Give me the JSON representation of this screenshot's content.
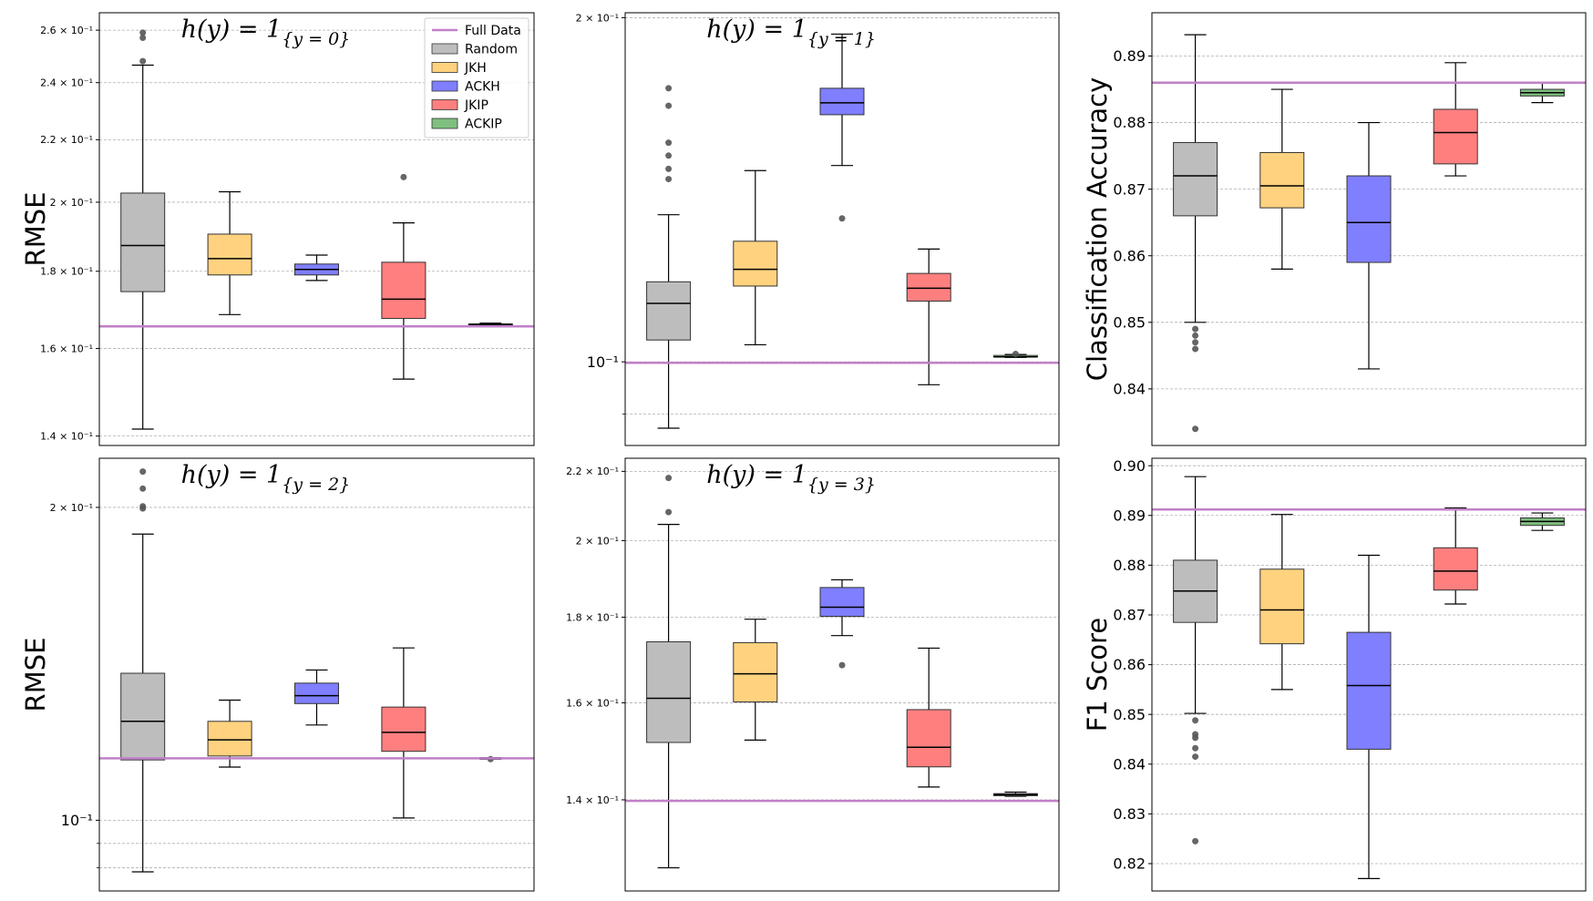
{
  "full_data_color": "#c080c8",
  "series_colors": {
    "Random": "#bdbdbd",
    "JKH": "#ffd27f",
    "ACKH": "#7f7fff",
    "JKIP": "#ff7f7f",
    "ACKIP": "#7fbf7f"
  },
  "legend": {
    "entries": [
      {
        "label": "Full Data",
        "kind": "line",
        "color": "#c080c8"
      },
      {
        "label": "Random",
        "kind": "box",
        "color": "#bdbdbd"
      },
      {
        "label": "JKH",
        "kind": "box",
        "color": "#ffd27f"
      },
      {
        "label": "ACKH",
        "kind": "box",
        "color": "#7f7fff"
      },
      {
        "label": "JKIP",
        "kind": "box",
        "color": "#ff7f7f"
      },
      {
        "label": "ACKIP",
        "kind": "box",
        "color": "#7fbf7f"
      }
    ]
  },
  "chart_data": [
    {
      "id": "p1",
      "type": "box",
      "scale": "log",
      "title": "h(y) = 1",
      "title_sub": "{y = 0}",
      "ylabel": "RMSE",
      "ylim": [
        0.138,
        0.267
      ],
      "yticks": [
        0.14,
        0.16,
        0.18,
        0.2,
        0.22,
        0.24,
        0.26
      ],
      "yticklabels": [
        "1.4 × 10⁻¹",
        "1.6 × 10⁻¹",
        "1.8 × 10⁻¹",
        "2 × 10⁻¹",
        "2.2 × 10⁻¹",
        "2.4 × 10⁻¹",
        "2.6 × 10⁻¹"
      ],
      "tick_size": "small",
      "full_data": 0.1655,
      "boxes": [
        {
          "name": "Random",
          "whislo": 0.1415,
          "q1": 0.1745,
          "med": 0.1872,
          "q3": 0.2028,
          "whishi": 0.2465,
          "fliers": [
            0.259,
            0.257,
            0.248
          ]
        },
        {
          "name": "JKH",
          "whislo": 0.1685,
          "q1": 0.179,
          "med": 0.1835,
          "q3": 0.1905,
          "whishi": 0.2032,
          "fliers": []
        },
        {
          "name": "ACKH",
          "whislo": 0.1775,
          "q1": 0.179,
          "med": 0.1805,
          "q3": 0.182,
          "whishi": 0.1845,
          "fliers": []
        },
        {
          "name": "JKIP",
          "whislo": 0.1527,
          "q1": 0.1675,
          "med": 0.1725,
          "q3": 0.1825,
          "whishi": 0.1938,
          "fliers": [
            0.2078
          ]
        },
        {
          "name": "ACKIP",
          "whislo": 0.1656,
          "q1": 0.1659,
          "med": 0.166,
          "q3": 0.1661,
          "whishi": 0.1663,
          "fliers": []
        }
      ]
    },
    {
      "id": "p2",
      "type": "box",
      "scale": "log",
      "title": "h(y) = 1",
      "title_sub": "{y = 1}",
      "ylabel": "",
      "ylim": [
        0.0845,
        0.202
      ],
      "yticks": [
        0.1,
        0.2
      ],
      "yticklabels": [
        "10⁻¹",
        "2 × 10⁻¹"
      ],
      "tick_size_list": [
        "large",
        "small"
      ],
      "minor_ticks": [
        0.09
      ],
      "full_data": 0.0998,
      "boxes": [
        {
          "name": "Random",
          "whislo": 0.0875,
          "q1": 0.1045,
          "med": 0.1125,
          "q3": 0.1175,
          "whishi": 0.1345,
          "fliers": [
            0.1735,
            0.1675,
            0.1555,
            0.1515,
            0.1475,
            0.1445
          ]
        },
        {
          "name": "JKH",
          "whislo": 0.1035,
          "q1": 0.1165,
          "med": 0.1205,
          "q3": 0.1275,
          "whishi": 0.147,
          "fliers": []
        },
        {
          "name": "ACKH",
          "whislo": 0.1485,
          "q1": 0.1645,
          "med": 0.1685,
          "q3": 0.1735,
          "whishi": 0.1935,
          "fliers": [
            0.1335
          ]
        },
        {
          "name": "JKIP",
          "whislo": 0.0955,
          "q1": 0.113,
          "med": 0.116,
          "q3": 0.1195,
          "whishi": 0.1255,
          "fliers": []
        },
        {
          "name": "ACKIP",
          "whislo": 0.1009,
          "q1": 0.101,
          "med": 0.101,
          "q3": 0.1013,
          "whishi": 0.1015,
          "fliers": [
            0.1016
          ]
        }
      ]
    },
    {
      "id": "p3",
      "type": "box",
      "scale": "linear",
      "title": "",
      "title_sub": "",
      "ylabel": "Classification Accuracy",
      "ylim": [
        0.8315,
        0.8965
      ],
      "yticks": [
        0.84,
        0.85,
        0.86,
        0.87,
        0.88,
        0.89
      ],
      "yticklabels": [
        "0.84",
        "0.85",
        "0.86",
        "0.87",
        "0.88",
        "0.89"
      ],
      "tick_size": "large",
      "full_data": 0.886,
      "boxes": [
        {
          "name": "Random",
          "whislo": 0.85,
          "q1": 0.866,
          "med": 0.872,
          "q3": 0.877,
          "whishi": 0.8932,
          "fliers": [
            0.849,
            0.848,
            0.847,
            0.846,
            0.834
          ]
        },
        {
          "name": "JKH",
          "whislo": 0.858,
          "q1": 0.8672,
          "med": 0.8705,
          "q3": 0.8755,
          "whishi": 0.885,
          "fliers": []
        },
        {
          "name": "ACKH",
          "whislo": 0.843,
          "q1": 0.859,
          "med": 0.865,
          "q3": 0.872,
          "whishi": 0.88,
          "fliers": []
        },
        {
          "name": "JKIP",
          "whislo": 0.872,
          "q1": 0.8738,
          "med": 0.8785,
          "q3": 0.882,
          "whishi": 0.889,
          "fliers": []
        },
        {
          "name": "ACKIP",
          "whislo": 0.883,
          "q1": 0.884,
          "med": 0.8845,
          "q3": 0.885,
          "whishi": 0.886,
          "fliers": []
        }
      ]
    },
    {
      "id": "p4",
      "type": "box",
      "scale": "log",
      "title": "h(y) = 1",
      "title_sub": "{y = 2}",
      "ylabel": "RMSE",
      "ylim": [
        0.0855,
        0.223
      ],
      "yticks": [
        0.1,
        0.2
      ],
      "yticklabels": [
        "10⁻¹",
        "2 × 10⁻¹"
      ],
      "tick_size_list": [
        "large",
        "small"
      ],
      "minor_ticks": [
        0.09,
        0.095
      ],
      "full_data": 0.1147,
      "boxes": [
        {
          "name": "Random",
          "whislo": 0.0892,
          "q1": 0.1143,
          "med": 0.1245,
          "q3": 0.1385,
          "whishi": 0.1885,
          "fliers": [
            0.2165,
            0.2085,
            0.2005,
            0.1995
          ]
        },
        {
          "name": "JKH",
          "whislo": 0.1125,
          "q1": 0.1153,
          "med": 0.1195,
          "q3": 0.1245,
          "whishi": 0.1305,
          "fliers": []
        },
        {
          "name": "ACKH",
          "whislo": 0.1235,
          "q1": 0.1295,
          "med": 0.1318,
          "q3": 0.1355,
          "whishi": 0.1395,
          "fliers": []
        },
        {
          "name": "JKIP",
          "whislo": 0.1005,
          "q1": 0.1165,
          "med": 0.1215,
          "q3": 0.1285,
          "whishi": 0.1465,
          "fliers": []
        },
        {
          "name": "ACKIP",
          "whislo": 0.1145,
          "q1": 0.1146,
          "med": 0.1147,
          "q3": 0.1148,
          "whishi": 0.1149,
          "fliers": [
            0.1145
          ]
        }
      ]
    },
    {
      "id": "p5",
      "type": "box",
      "scale": "log",
      "title": "h(y) = 1",
      "title_sub": "{y = 3}",
      "ylabel": "",
      "ylim": [
        0.1235,
        0.224
      ],
      "yticks": [
        0.14,
        0.16,
        0.18,
        0.2,
        0.22
      ],
      "yticklabels": [
        "1.4 × 10⁻¹",
        "1.6 × 10⁻¹",
        "1.8 × 10⁻¹",
        "2 × 10⁻¹",
        "2.2 × 10⁻¹"
      ],
      "tick_size": "small",
      "full_data": 0.1398,
      "boxes": [
        {
          "name": "Random",
          "whislo": 0.1275,
          "q1": 0.1515,
          "med": 0.161,
          "q3": 0.174,
          "whishi": 0.2045,
          "fliers": [
            0.218,
            0.208
          ]
        },
        {
          "name": "JKH",
          "whislo": 0.152,
          "q1": 0.1602,
          "med": 0.1665,
          "q3": 0.1738,
          "whishi": 0.1795,
          "fliers": []
        },
        {
          "name": "ACKH",
          "whislo": 0.1755,
          "q1": 0.1802,
          "med": 0.1825,
          "q3": 0.1875,
          "whishi": 0.1895,
          "fliers": [
            0.1685
          ]
        },
        {
          "name": "JKIP",
          "whislo": 0.1425,
          "q1": 0.1465,
          "med": 0.1505,
          "q3": 0.1585,
          "whishi": 0.1725,
          "fliers": []
        },
        {
          "name": "ACKIP",
          "whislo": 0.1407,
          "q1": 0.1408,
          "med": 0.141,
          "q3": 0.1412,
          "whishi": 0.1415,
          "fliers": []
        }
      ]
    },
    {
      "id": "p6",
      "type": "box",
      "scale": "linear",
      "title": "",
      "title_sub": "",
      "ylabel": "F1 Score",
      "ylim": [
        0.8145,
        0.9015
      ],
      "yticks": [
        0.82,
        0.83,
        0.84,
        0.85,
        0.86,
        0.87,
        0.88,
        0.89,
        0.9
      ],
      "yticklabels": [
        "0.82",
        "0.83",
        "0.84",
        "0.85",
        "0.86",
        "0.87",
        "0.88",
        "0.89",
        "0.90"
      ],
      "tick_size": "large",
      "full_data": 0.8912,
      "boxes": [
        {
          "name": "Random",
          "whislo": 0.8502,
          "q1": 0.8685,
          "med": 0.8748,
          "q3": 0.881,
          "whishi": 0.8978,
          "fliers": [
            0.8488,
            0.846,
            0.8453,
            0.8432,
            0.8415,
            0.8245
          ]
        },
        {
          "name": "JKH",
          "whislo": 0.855,
          "q1": 0.8642,
          "med": 0.871,
          "q3": 0.8792,
          "whishi": 0.8902,
          "fliers": []
        },
        {
          "name": "ACKH",
          "whislo": 0.817,
          "q1": 0.843,
          "med": 0.8558,
          "q3": 0.8665,
          "whishi": 0.882,
          "fliers": []
        },
        {
          "name": "JKIP",
          "whislo": 0.8722,
          "q1": 0.875,
          "med": 0.8788,
          "q3": 0.8835,
          "whishi": 0.8915,
          "fliers": []
        },
        {
          "name": "ACKIP",
          "whislo": 0.887,
          "q1": 0.888,
          "med": 0.8888,
          "q3": 0.8895,
          "whishi": 0.8905,
          "fliers": []
        }
      ]
    }
  ]
}
